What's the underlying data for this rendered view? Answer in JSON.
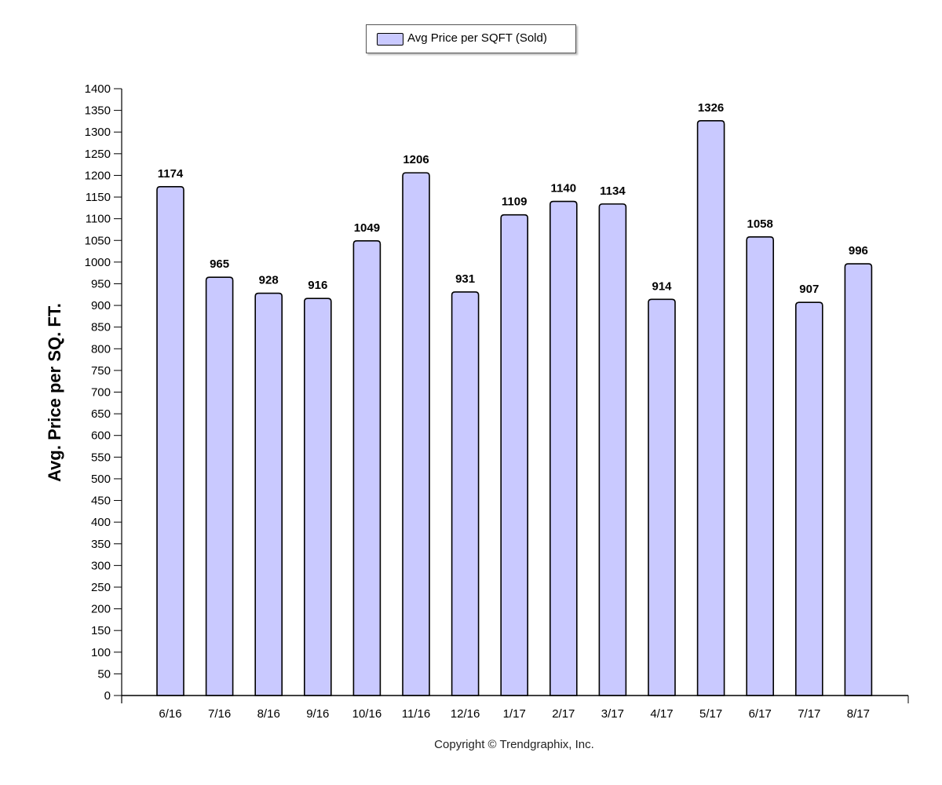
{
  "chart_data": {
    "type": "bar",
    "title": "",
    "xlabel": "",
    "ylabel": "Avg. Price per SQ. FT.",
    "ylim": [
      0,
      1400
    ],
    "ytick_step": 50,
    "grid": false,
    "legend_position": "top-center",
    "categories": [
      "6/16",
      "7/16",
      "8/16",
      "9/16",
      "10/16",
      "11/16",
      "12/16",
      "1/17",
      "2/17",
      "3/17",
      "4/17",
      "5/17",
      "6/17",
      "7/17",
      "8/17"
    ],
    "series": [
      {
        "name": "Avg Price per SQFT (Sold)",
        "color": "#c9c9ff",
        "values": [
          1174,
          965,
          928,
          916,
          1049,
          1206,
          931,
          1109,
          1140,
          1134,
          914,
          1326,
          1058,
          907,
          996
        ]
      }
    ]
  },
  "footer": {
    "copyright": "Copyright © Trendgraphix, Inc."
  }
}
